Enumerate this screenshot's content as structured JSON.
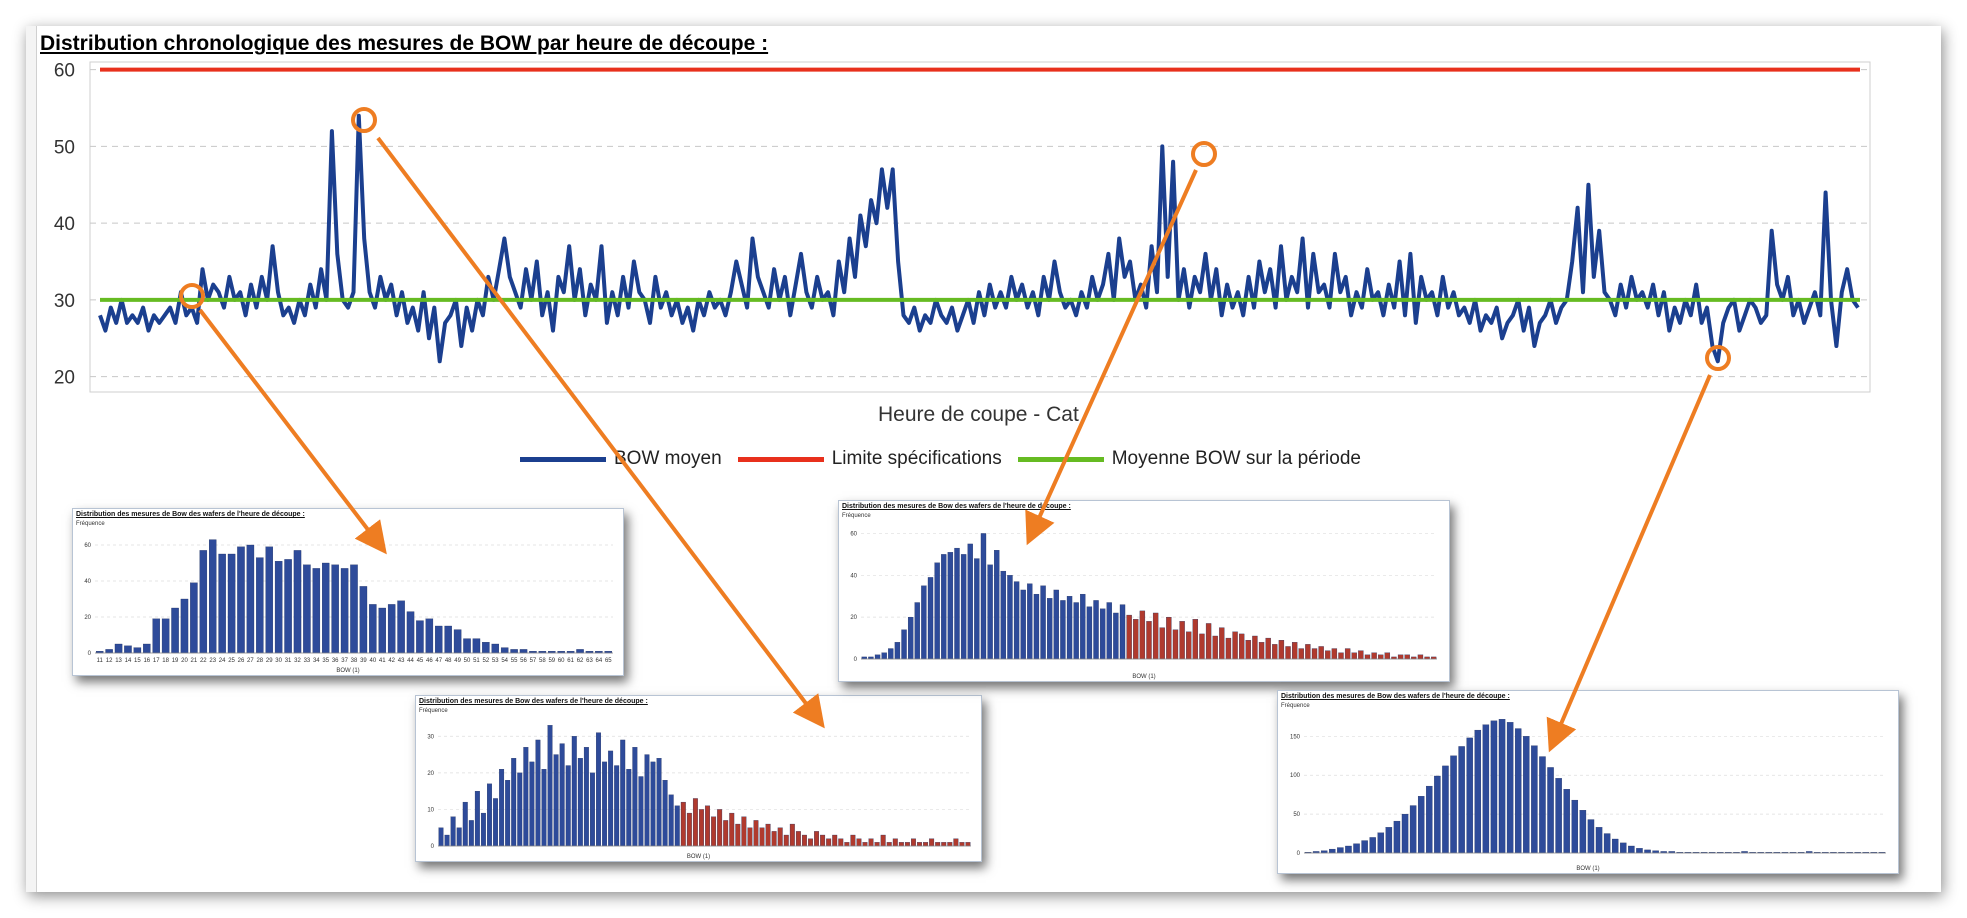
{
  "main": {
    "title": "Distribution chronologique des mesures de BOW par heure de découpe :",
    "xlabel": "Heure de coupe - Cat",
    "legend": [
      {
        "label": "BOW moyen",
        "color": "#1b3f8f"
      },
      {
        "label": "Limite spécifications",
        "color": "#e8301c"
      },
      {
        "label": "Moyenne BOW sur la période",
        "color": "#66bb22"
      }
    ]
  },
  "insets": [
    {
      "title": "Distribution des mesures de Bow des wafers de l'heure de découpe :",
      "ylabel": "Fréquence",
      "xlabel": "BOW (1)"
    },
    {
      "title": "Distribution des mesures de Bow des wafers de l'heure de découpe :",
      "ylabel": "Fréquence",
      "xlabel": "BOW (1)"
    },
    {
      "title": "Distribution des mesures de Bow des wafers de l'heure de découpe :",
      "ylabel": "Fréquence",
      "xlabel": "BOW (1)"
    },
    {
      "title": "Distribution des mesures de Bow des wafers de l'heure de découpe :",
      "ylabel": "Fréquence",
      "xlabel": "BOW (1)"
    }
  ],
  "chart_data": [
    {
      "type": "line",
      "title": "Distribution chronologique des mesures de BOW par heure de découpe :",
      "xlabel": "Heure de coupe - Cat",
      "ylabel": "",
      "ylim": [
        18,
        61
      ],
      "yticks": [
        20,
        30,
        40,
        50,
        60
      ],
      "grid": true,
      "legend_position": "bottom",
      "series": [
        {
          "name": "BOW moyen",
          "color": "#1b3f8f",
          "values": [
            28,
            26,
            29,
            27,
            30,
            27,
            28,
            27,
            29,
            26,
            28,
            27,
            28,
            29,
            27,
            31,
            28,
            29,
            27,
            34,
            30,
            32,
            31,
            29,
            33,
            30,
            31,
            28,
            32,
            29,
            33,
            30,
            37,
            31,
            28,
            29,
            27,
            30,
            28,
            32,
            29,
            34,
            30,
            52,
            36,
            30,
            29,
            31,
            54,
            38,
            31,
            29,
            33,
            30,
            32,
            28,
            31,
            27,
            29,
            26,
            31,
            25,
            29,
            22,
            27,
            28,
            30,
            24,
            29,
            26,
            30,
            28,
            33,
            30,
            34,
            38,
            33,
            31,
            29,
            34,
            30,
            35,
            28,
            31,
            26,
            33,
            31,
            37,
            30,
            34,
            28,
            32,
            30,
            37,
            27,
            31,
            28,
            33,
            29,
            35,
            31,
            30,
            27,
            33,
            29,
            31,
            28,
            30,
            27,
            29,
            26,
            30,
            28,
            31,
            29,
            30,
            28,
            31,
            35,
            32,
            29,
            38,
            33,
            31,
            29,
            34,
            30,
            33,
            28,
            32,
            36,
            31,
            29,
            33,
            30,
            31,
            28,
            35,
            31,
            38,
            33,
            41,
            37,
            43,
            40,
            47,
            42,
            47,
            35,
            28,
            27,
            29,
            26,
            28,
            27,
            30,
            28,
            27,
            29,
            26,
            28,
            30,
            27,
            31,
            28,
            32,
            29,
            31,
            29,
            33,
            30,
            32,
            29,
            31,
            28,
            33,
            30,
            35,
            31,
            29,
            30,
            28,
            31,
            29,
            33,
            30,
            32,
            36,
            30,
            38,
            33,
            35,
            30,
            32,
            29,
            37,
            31,
            50,
            33,
            48,
            30,
            34,
            29,
            33,
            31,
            36,
            30,
            34,
            28,
            32,
            29,
            31,
            28,
            33,
            29,
            35,
            31,
            34,
            29,
            37,
            30,
            33,
            31,
            38,
            29,
            36,
            31,
            32,
            29,
            36,
            31,
            33,
            28,
            31,
            29,
            34,
            30,
            31,
            28,
            32,
            29,
            35,
            28,
            36,
            27,
            33,
            30,
            31,
            28,
            33,
            29,
            31,
            28,
            29,
            27,
            30,
            26,
            28,
            27,
            29,
            25,
            27,
            28,
            30,
            26,
            29,
            24,
            27,
            28,
            30,
            27,
            29,
            30,
            35,
            42,
            31,
            45,
            33,
            39,
            31,
            30,
            28,
            32,
            29,
            33,
            30,
            31,
            29,
            32,
            28,
            31,
            26,
            29,
            27,
            30,
            28,
            32,
            27,
            29,
            24,
            22,
            27,
            29,
            30,
            26,
            28,
            30,
            29,
            27,
            28,
            39,
            32,
            30,
            33,
            28,
            30,
            27,
            29,
            31,
            28,
            44,
            30,
            24,
            31,
            34,
            30,
            29
          ]
        },
        {
          "name": "Limite spécifications",
          "color": "#e8301c",
          "values": [
            60
          ]
        },
        {
          "name": "Moyenne BOW sur la période",
          "color": "#66bb22",
          "values": [
            30
          ]
        }
      ]
    },
    {
      "type": "bar",
      "title": "Distribution des mesures de Bow des wafers de l'heure de découpe :",
      "ylabel": "Fréquence",
      "xlabel": "BOW (1)",
      "yticks": [
        0,
        20,
        40,
        60
      ],
      "ylim": [
        0,
        70
      ],
      "categories": [
        "11",
        "12",
        "13",
        "14",
        "15",
        "16",
        "17",
        "18",
        "19",
        "20",
        "21",
        "22",
        "23",
        "24",
        "25",
        "26",
        "27",
        "28",
        "29",
        "30",
        "31",
        "32",
        "33",
        "34",
        "35",
        "36",
        "37",
        "38",
        "39",
        "40",
        "41",
        "42",
        "43",
        "44",
        "45",
        "46",
        "47",
        "48",
        "49",
        "50",
        "51",
        "52",
        "53",
        "54",
        "55",
        "56",
        "57",
        "58",
        "59",
        "60",
        "61",
        "62",
        "63",
        "64",
        "65"
      ],
      "values": [
        1,
        2,
        5,
        4,
        3,
        5,
        19,
        19,
        25,
        30,
        39,
        57,
        63,
        55,
        55,
        59,
        60,
        53,
        59,
        51,
        52,
        57,
        49,
        47,
        50,
        49,
        47,
        49,
        37,
        27,
        25,
        27,
        29,
        23,
        18,
        19,
        15,
        15,
        13,
        8,
        8,
        6,
        5,
        3,
        2,
        2,
        1,
        1,
        1,
        1,
        1,
        2,
        1,
        1,
        1
      ],
      "series_colors": [
        "#2e4b9a",
        "#b03a2e"
      ]
    },
    {
      "type": "bar",
      "title": "Distribution des mesures de Bow des wafers de l'heure de découpe :",
      "ylabel": "Fréquence",
      "xlabel": "BOW (1)",
      "yticks": [
        0,
        10,
        20,
        30
      ],
      "ylim": [
        0,
        35
      ],
      "values": [
        5,
        3,
        8,
        5,
        12,
        7,
        15,
        9,
        17,
        13,
        21,
        18,
        24,
        20,
        27,
        23,
        29,
        21,
        33,
        25,
        28,
        22,
        30,
        24,
        27,
        20,
        31,
        23,
        26,
        22,
        29,
        21,
        27,
        19,
        25,
        23,
        24,
        18,
        14,
        11,
        12,
        9,
        13,
        10,
        11,
        8,
        10,
        7,
        9,
        6,
        8,
        5,
        7,
        5,
        6,
        4,
        5,
        3,
        6,
        4,
        3,
        2,
        4,
        3,
        2,
        3,
        2,
        1,
        3,
        2,
        1,
        2,
        1,
        3,
        1,
        2,
        1,
        1,
        2,
        1,
        1,
        2,
        1,
        1,
        1,
        2,
        1,
        1
      ],
      "split_index": 40,
      "series_colors": [
        "#2e4b9a",
        "#b03a2e"
      ]
    },
    {
      "type": "bar",
      "title": "Distribution des mesures de Bow des wafers de l'heure de découpe :",
      "ylabel": "Fréquence",
      "xlabel": "BOW (1)",
      "yticks": [
        0,
        20,
        40,
        60
      ],
      "ylim": [
        0,
        65
      ],
      "values": [
        1,
        1,
        2,
        3,
        5,
        8,
        14,
        20,
        27,
        35,
        39,
        46,
        50,
        51,
        53,
        50,
        55,
        48,
        60,
        45,
        52,
        42,
        40,
        37,
        33,
        36,
        31,
        35,
        29,
        33,
        28,
        30,
        27,
        31,
        25,
        28,
        24,
        27,
        22,
        26,
        21,
        19,
        23,
        18,
        22,
        15,
        20,
        14,
        18,
        13,
        19,
        12,
        17,
        11,
        15,
        10,
        13,
        12,
        9,
        11,
        8,
        10,
        7,
        9,
        6,
        8,
        5,
        7,
        5,
        6,
        4,
        5,
        3,
        5,
        3,
        4,
        2,
        3,
        2,
        3,
        1,
        2,
        2,
        1,
        2,
        1,
        1
      ],
      "split_index": 40,
      "series_colors": [
        "#2e4b9a",
        "#b03a2e"
      ]
    },
    {
      "type": "bar",
      "title": "Distribution des mesures de Bow des wafers de l'heure de découpe :",
      "ylabel": "Fréquence",
      "xlabel": "BOW (1)",
      "yticks": [
        0,
        50,
        100,
        150
      ],
      "ylim": [
        0,
        180
      ],
      "values": [
        1,
        2,
        3,
        5,
        7,
        9,
        12,
        16,
        20,
        26,
        33,
        41,
        50,
        61,
        73,
        86,
        99,
        112,
        125,
        137,
        148,
        158,
        165,
        170,
        172,
        168,
        160,
        150,
        138,
        124,
        110,
        96,
        82,
        68,
        55,
        43,
        33,
        25,
        18,
        13,
        9,
        6,
        4,
        3,
        2,
        2,
        1,
        1,
        1,
        1,
        1,
        1,
        1,
        1,
        2,
        1,
        1,
        1,
        1,
        1,
        1,
        1,
        2,
        1,
        1,
        1,
        1,
        1,
        1,
        1,
        1,
        1
      ],
      "split_index": 999,
      "series_colors": [
        "#2e4b9a",
        "#b03a2e"
      ]
    }
  ]
}
